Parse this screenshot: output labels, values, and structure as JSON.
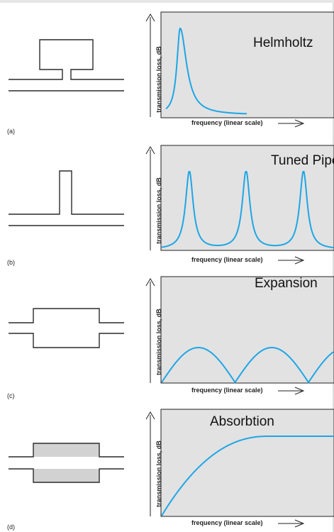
{
  "panels": [
    {
      "tag": "(a)",
      "title": "Helmholtz",
      "ylabel": "transmission loss, dB",
      "xlabel": "frequency (linear scale)",
      "chart_data": {
        "type": "line",
        "curve": "single-resonance",
        "peaks_at_fraction_of_axis": [
          0.22
        ],
        "curve_end_fraction_of_axis": 0.9
      }
    },
    {
      "tag": "(b)",
      "title": "Tuned Pipe",
      "ylabel": "transmission loss, dB",
      "xlabel": "frequency (linear scale)",
      "chart_data": {
        "type": "line",
        "curve": "periodic-resonances",
        "peaks_at_fraction_of_axis": [
          0.2,
          0.5,
          0.8
        ]
      }
    },
    {
      "tag": "(c)",
      "title": "Expansion",
      "ylabel": "transmission loss, dB",
      "xlabel": "frequency (linear scale)",
      "chart_data": {
        "type": "line",
        "curve": "periodic-domes",
        "zeros_at_fraction_of_axis": [
          0.0,
          0.41,
          0.83
        ]
      }
    },
    {
      "tag": "(d)",
      "title": "Absorbtion",
      "ylabel": "transmission loss, dB",
      "xlabel": "frequency (linear scale)",
      "chart_data": {
        "type": "line",
        "curve": "rising-plateau",
        "plateau_starts_at_fraction_of_axis": 0.6
      }
    }
  ],
  "colors": {
    "curve": "#1ea6e6",
    "plot_bg": "#e2e2e2",
    "chamber_fill": "#d2d2d2",
    "line": "#2a2a2a"
  }
}
